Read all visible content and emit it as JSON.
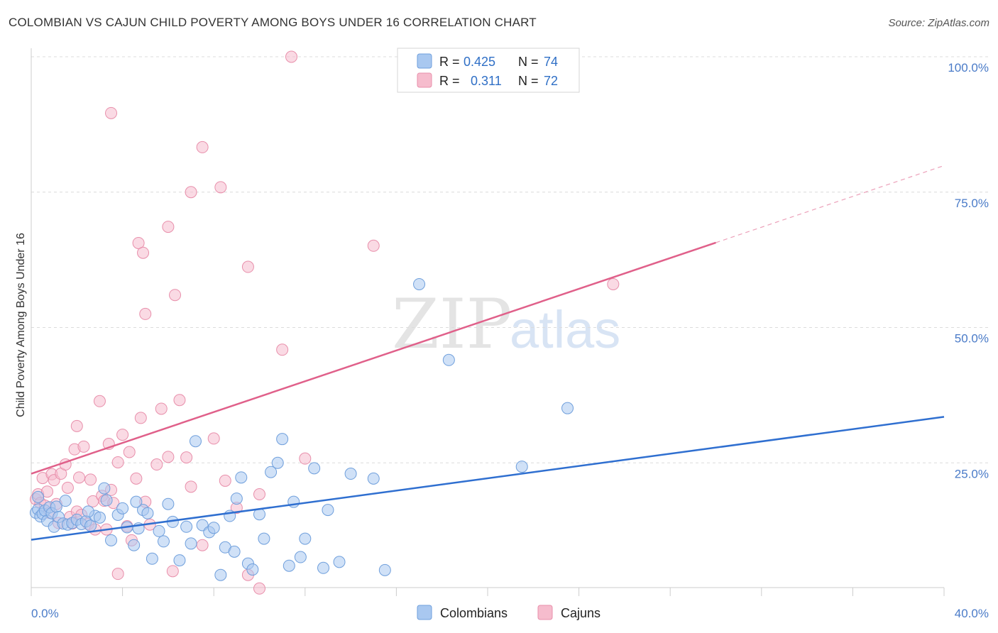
{
  "header": {
    "title": "COLOMBIAN VS CAJUN CHILD POVERTY AMONG BOYS UNDER 16 CORRELATION CHART",
    "source": "Source: ZipAtlas.com"
  },
  "watermark": {
    "zip": "ZIP",
    "atlas": "atlas"
  },
  "legend_top": {
    "rows": [
      {
        "r_label": "R =",
        "r_value": "0.425",
        "n_label": "N =",
        "n_value": "74",
        "color": "#a9c8f0"
      },
      {
        "r_label": "R =",
        "r_value": "0.311",
        "n_label": "N =",
        "n_value": "72",
        "color": "#f6bccd"
      }
    ]
  },
  "legend_bottom": {
    "items": [
      {
        "label": "Colombians",
        "color": "#a9c8f0"
      },
      {
        "label": "Cajuns",
        "color": "#f6bccd"
      }
    ]
  },
  "chart_data": {
    "type": "scatter",
    "title": "COLOMBIAN VS CAJUN CHILD POVERTY AMONG BOYS UNDER 16 CORRELATION CHART",
    "xlabel": "",
    "ylabel": "Child Poverty Among Boys Under 16",
    "xlim": [
      0,
      40
    ],
    "ylim": [
      0,
      100
    ],
    "x_tick_labels": [
      "0.0%",
      "40.0%"
    ],
    "y_tick_labels": [
      "100.0%",
      "75.0%",
      "50.0%",
      "25.0%"
    ],
    "y_ticks": [
      100,
      75,
      50,
      25
    ],
    "grid": true,
    "legend_position": "top-center",
    "series": [
      {
        "name": "Colombians",
        "color": "#2f6fd0",
        "fill": "#a9c8f0",
        "r": 0.425,
        "n": 74,
        "trend": {
          "x0": 0,
          "y0": 10.8,
          "x1": 40,
          "y1": 33.5,
          "dash_from": null
        },
        "points": [
          [
            0.2,
            15.8
          ],
          [
            0.3,
            16.4
          ],
          [
            0.4,
            15.1
          ],
          [
            0.5,
            15.6
          ],
          [
            0.6,
            16.2
          ],
          [
            0.7,
            14.3
          ],
          [
            0.8,
            16.8
          ],
          [
            0.9,
            15.7
          ],
          [
            1.0,
            13.2
          ],
          [
            1.1,
            16.9
          ],
          [
            1.2,
            15.0
          ],
          [
            1.4,
            13.8
          ],
          [
            1.6,
            13.6
          ],
          [
            1.8,
            13.9
          ],
          [
            2.0,
            14.5
          ],
          [
            2.2,
            13.7
          ],
          [
            2.4,
            14.2
          ],
          [
            2.6,
            13.4
          ],
          [
            2.8,
            15.2
          ],
          [
            3.0,
            14.9
          ],
          [
            3.3,
            18.1
          ],
          [
            3.5,
            10.7
          ],
          [
            3.8,
            15.4
          ],
          [
            4.0,
            16.6
          ],
          [
            4.2,
            13.1
          ],
          [
            4.5,
            9.8
          ],
          [
            4.7,
            12.9
          ],
          [
            4.9,
            16.3
          ],
          [
            5.1,
            15.7
          ],
          [
            5.3,
            7.3
          ],
          [
            5.6,
            12.4
          ],
          [
            5.8,
            10.5
          ],
          [
            6.0,
            17.4
          ],
          [
            6.2,
            14.1
          ],
          [
            6.5,
            7.0
          ],
          [
            6.8,
            13.2
          ],
          [
            7.0,
            10.1
          ],
          [
            7.2,
            29.0
          ],
          [
            7.5,
            13.5
          ],
          [
            7.8,
            12.2
          ],
          [
            8.0,
            13.0
          ],
          [
            8.3,
            4.3
          ],
          [
            8.5,
            9.4
          ],
          [
            8.7,
            15.2
          ],
          [
            9.0,
            18.4
          ],
          [
            9.2,
            22.3
          ],
          [
            9.5,
            6.4
          ],
          [
            9.7,
            5.3
          ],
          [
            10.0,
            15.5
          ],
          [
            10.2,
            11.0
          ],
          [
            10.5,
            23.3
          ],
          [
            10.8,
            25.0
          ],
          [
            11.0,
            29.4
          ],
          [
            11.3,
            6.0
          ],
          [
            11.5,
            17.8
          ],
          [
            11.8,
            7.6
          ],
          [
            12.0,
            11.0
          ],
          [
            12.4,
            24.0
          ],
          [
            13.0,
            16.3
          ],
          [
            13.5,
            6.7
          ],
          [
            14.0,
            23.0
          ],
          [
            15.0,
            22.1
          ],
          [
            15.5,
            5.2
          ],
          [
            17.0,
            58.0
          ],
          [
            0.3,
            18.7
          ],
          [
            1.5,
            18.0
          ],
          [
            2.5,
            16.0
          ],
          [
            3.2,
            20.3
          ],
          [
            4.6,
            17.8
          ],
          [
            18.3,
            44.0
          ],
          [
            21.5,
            24.3
          ],
          [
            23.5,
            35.1
          ],
          [
            8.9,
            8.6
          ],
          [
            12.8,
            5.6
          ]
        ]
      },
      {
        "name": "Cajuns",
        "color": "#e0608a",
        "fill": "#f6bccd",
        "r": 0.311,
        "n": 72,
        "trend": {
          "x0": 0,
          "y0": 23.0,
          "x1": 40,
          "y1": 79.9,
          "dash_from": 30.0
        },
        "points": [
          [
            0.2,
            18.3
          ],
          [
            0.3,
            19.2
          ],
          [
            0.4,
            17.6
          ],
          [
            0.5,
            22.2
          ],
          [
            0.6,
            17.1
          ],
          [
            0.7,
            19.7
          ],
          [
            0.8,
            15.8
          ],
          [
            0.9,
            22.9
          ],
          [
            1.0,
            21.8
          ],
          [
            1.1,
            17.4
          ],
          [
            1.2,
            13.9
          ],
          [
            1.3,
            23.0
          ],
          [
            1.5,
            24.7
          ],
          [
            1.6,
            20.4
          ],
          [
            1.7,
            15.0
          ],
          [
            1.8,
            13.8
          ],
          [
            1.9,
            27.5
          ],
          [
            2.0,
            16.0
          ],
          [
            2.1,
            22.3
          ],
          [
            2.2,
            15.4
          ],
          [
            2.3,
            28.0
          ],
          [
            2.5,
            13.7
          ],
          [
            2.6,
            21.9
          ],
          [
            2.7,
            17.9
          ],
          [
            2.8,
            12.7
          ],
          [
            3.0,
            36.4
          ],
          [
            3.1,
            18.9
          ],
          [
            3.2,
            18.0
          ],
          [
            3.3,
            12.7
          ],
          [
            3.4,
            28.5
          ],
          [
            3.5,
            20.0
          ],
          [
            3.6,
            17.6
          ],
          [
            3.8,
            25.1
          ],
          [
            4.0,
            30.2
          ],
          [
            4.2,
            13.3
          ],
          [
            4.4,
            10.7
          ],
          [
            4.6,
            22.1
          ],
          [
            4.8,
            33.3
          ],
          [
            5.0,
            17.8
          ],
          [
            5.2,
            13.6
          ],
          [
            5.5,
            24.7
          ],
          [
            5.7,
            35.0
          ],
          [
            6.0,
            26.1
          ],
          [
            6.2,
            5.0
          ],
          [
            6.5,
            36.6
          ],
          [
            6.8,
            26.0
          ],
          [
            7.0,
            20.6
          ],
          [
            7.5,
            9.8
          ],
          [
            8.0,
            29.5
          ],
          [
            8.5,
            21.7
          ],
          [
            9.0,
            16.7
          ],
          [
            9.5,
            4.3
          ],
          [
            10.0,
            19.2
          ],
          [
            11.0,
            45.9
          ],
          [
            12.0,
            25.8
          ],
          [
            3.5,
            89.6
          ],
          [
            4.7,
            65.6
          ],
          [
            4.9,
            63.8
          ],
          [
            5.0,
            52.5
          ],
          [
            6.0,
            68.6
          ],
          [
            6.3,
            56.0
          ],
          [
            7.0,
            75.0
          ],
          [
            7.5,
            83.3
          ],
          [
            8.3,
            75.9
          ],
          [
            9.5,
            61.2
          ],
          [
            11.4,
            100.0
          ],
          [
            15.0,
            65.1
          ],
          [
            25.5,
            58.0
          ],
          [
            2.0,
            31.8
          ],
          [
            3.8,
            4.5
          ],
          [
            10.0,
            1.8
          ],
          [
            4.3,
            27.0
          ]
        ]
      }
    ]
  }
}
